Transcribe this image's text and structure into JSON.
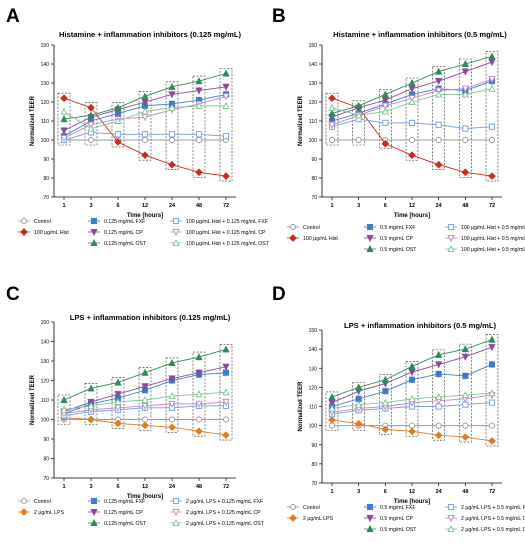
{
  "figure": {
    "panels": [
      "A",
      "B",
      "C",
      "D"
    ]
  },
  "chart_data": [
    {
      "panel": "A",
      "type": "line",
      "title": "Histamine + inflammation inhibitors (0.125 mg/mL)",
      "xlabel": "Time [hours]",
      "ylabel": "Normalized TEER",
      "x": [
        "1",
        "3",
        "6",
        "12",
        "24",
        "48",
        "72"
      ],
      "ylim": [
        70,
        150
      ],
      "yticks": [
        70,
        80,
        90,
        100,
        110,
        120,
        130,
        140,
        150
      ],
      "boxed_x": [
        0,
        1,
        2,
        3,
        4,
        5,
        6
      ],
      "series": [
        {
          "name": "Control",
          "color": "#9a9a9a",
          "marker": "circle-open",
          "values": [
            100,
            100,
            100,
            100,
            100,
            100,
            100
          ]
        },
        {
          "name": "100 µg/mL Hist",
          "color": "#cc2a1e",
          "marker": "diamond",
          "values": [
            122,
            117,
            99,
            92,
            87,
            83,
            81
          ]
        },
        {
          "name": "0.125 mg/mL FXF",
          "color": "#3e7cc4",
          "marker": "square",
          "values": [
            102,
            110,
            114,
            118,
            119,
            121,
            124
          ]
        },
        {
          "name": "0.125 mg/mL CP",
          "color": "#8b4a9c",
          "marker": "triangle-down",
          "values": [
            105,
            112,
            116,
            120,
            124,
            126,
            128
          ]
        },
        {
          "name": "0.125 mg/mL OST",
          "color": "#2e8b57",
          "marker": "triangle",
          "values": [
            111,
            113,
            117,
            123,
            128,
            131,
            135
          ]
        },
        {
          "name": "100 µg/mL Hist + 0.125 mg/mL FXF",
          "color": "#6fa0d8",
          "marker": "square-open",
          "values": [
            100,
            104,
            103,
            103,
            103,
            103,
            102
          ]
        },
        {
          "name": "100 µg/mL Hist + 0.125 mg/mL CP",
          "color": "#c084c9",
          "marker": "triangle-down-open",
          "values": [
            101,
            108,
            111,
            112,
            116,
            119,
            123
          ]
        },
        {
          "name": "100 µg/mL Hist + 0.125 mg/mL OST",
          "color": "#7cc58f",
          "marker": "triangle-open",
          "values": [
            115,
            106,
            110,
            115,
            117,
            118,
            118
          ]
        }
      ]
    },
    {
      "panel": "B",
      "type": "line",
      "title": "Histamine + inflammation inhibitors (0.5 mg/mL)",
      "xlabel": "Time [hours]",
      "ylabel": "Normalized TEER",
      "x": [
        "1",
        "3",
        "6",
        "12",
        "24",
        "48",
        "72"
      ],
      "ylim": [
        70,
        150
      ],
      "yticks": [
        70,
        80,
        90,
        100,
        110,
        120,
        130,
        140,
        150
      ],
      "boxed_x": [
        0,
        1,
        2,
        3,
        4,
        5,
        6
      ],
      "series": [
        {
          "name": "Control",
          "color": "#9a9a9a",
          "marker": "circle-open",
          "values": [
            100,
            100,
            100,
            100,
            100,
            100,
            100
          ]
        },
        {
          "name": "100 µg/mL Hist",
          "color": "#cc2a1e",
          "marker": "diamond",
          "values": [
            122,
            117,
            98,
            92,
            87,
            83,
            81
          ]
        },
        {
          "name": "0.5 mg/mL FXF",
          "color": "#3e7cc4",
          "marker": "square",
          "values": [
            110,
            114,
            119,
            124,
            127,
            126,
            131
          ]
        },
        {
          "name": "0.5 mg/mL CP",
          "color": "#8b4a9c",
          "marker": "triangle-down",
          "values": [
            112,
            117,
            121,
            127,
            131,
            136,
            141
          ]
        },
        {
          "name": "0.5 mg/mL OST",
          "color": "#2e8b57",
          "marker": "triangle",
          "values": [
            114,
            118,
            124,
            130,
            136,
            140,
            144
          ]
        },
        {
          "name": "100 µg/mL Hist + 0.5 mg/mL FXF",
          "color": "#6fa0d8",
          "marker": "square-open",
          "values": [
            107,
            111,
            109,
            109,
            108,
            106,
            107
          ]
        },
        {
          "name": "100 µg/mL Hist + 0.5 mg/mL CP",
          "color": "#c084c9",
          "marker": "triangle-down-open",
          "values": [
            108,
            113,
            118,
            122,
            126,
            127,
            132
          ]
        },
        {
          "name": "100 µg/mL Hist + 0.5 mg/mL OST",
          "color": "#7cc58f",
          "marker": "triangle-open",
          "values": [
            117,
            113,
            115,
            120,
            124,
            124,
            127
          ]
        }
      ]
    },
    {
      "panel": "C",
      "type": "line",
      "title": "LPS + inflammation inhibitors (0.125 mg/mL)",
      "xlabel": "Time [hours]",
      "ylabel": "Normalized TEER",
      "x": [
        "1",
        "3",
        "6",
        "12",
        "24",
        "48",
        "72"
      ],
      "ylim": [
        70,
        150
      ],
      "yticks": [
        70,
        80,
        90,
        100,
        110,
        120,
        130,
        140,
        150
      ],
      "boxed_x": [
        0,
        1,
        2,
        3,
        4,
        5,
        6
      ],
      "series": [
        {
          "name": "Control",
          "color": "#9a9a9a",
          "marker": "circle-open",
          "values": [
            100,
            100,
            100,
            100,
            100,
            100,
            100
          ]
        },
        {
          "name": "2 µg/mL LPS",
          "color": "#e07b22",
          "marker": "diamond",
          "values": [
            101,
            100,
            98,
            97,
            96,
            94,
            92
          ]
        },
        {
          "name": "0.125 mg/mL FXF",
          "color": "#3e7cc4",
          "marker": "square",
          "values": [
            103,
            108,
            111,
            115,
            120,
            123,
            124
          ]
        },
        {
          "name": "0.125 mg/mL CP",
          "color": "#8b4a9c",
          "marker": "triangle-down",
          "values": [
            104,
            109,
            113,
            117,
            121,
            124,
            127
          ]
        },
        {
          "name": "0.125 mg/mL OST",
          "color": "#2e8b57",
          "marker": "triangle",
          "values": [
            110,
            116,
            119,
            124,
            129,
            132,
            136
          ]
        },
        {
          "name": "2 µg/mL LPS + 0.125 mg/mL FXF",
          "color": "#6fa0d8",
          "marker": "square-open",
          "values": [
            102,
            104,
            105,
            106,
            106,
            107,
            107
          ]
        },
        {
          "name": "2 µg/mL LPS + 0.125 mg/mL CP",
          "color": "#c084c9",
          "marker": "triangle-down-open",
          "values": [
            103,
            105,
            106,
            107,
            108,
            108,
            109
          ]
        },
        {
          "name": "2 µg/mL LPS + 0.125 mg/mL OST",
          "color": "#7cc58f",
          "marker": "triangle-open",
          "values": [
            105,
            107,
            109,
            110,
            112,
            113,
            114
          ]
        }
      ]
    },
    {
      "panel": "D",
      "type": "line",
      "title": "LPS + inflammation inhibitors (0.5 mg/mL)",
      "xlabel": "Time [hours]",
      "ylabel": "Normalized TEER",
      "x": [
        "1",
        "3",
        "6",
        "12",
        "24",
        "48",
        "72"
      ],
      "ylim": [
        70,
        150
      ],
      "yticks": [
        70,
        80,
        90,
        100,
        110,
        120,
        130,
        140,
        150
      ],
      "boxed_x": [
        0,
        1,
        2,
        3,
        4,
        5,
        6
      ],
      "series": [
        {
          "name": "Control",
          "color": "#9a9a9a",
          "marker": "circle-open",
          "values": [
            100,
            100,
            100,
            100,
            100,
            100,
            100
          ]
        },
        {
          "name": "2 µg/mL LPS",
          "color": "#e07b22",
          "marker": "diamond",
          "values": [
            103,
            101,
            98,
            97,
            95,
            94,
            92
          ]
        },
        {
          "name": "0.5 mg/mL FXF",
          "color": "#3e7cc4",
          "marker": "square",
          "values": [
            110,
            114,
            118,
            124,
            127,
            126,
            132
          ]
        },
        {
          "name": "0.5 mg/mL CP",
          "color": "#8b4a9c",
          "marker": "triangle-down",
          "values": [
            112,
            118,
            122,
            128,
            132,
            136,
            141
          ]
        },
        {
          "name": "0.5 mg/mL OST",
          "color": "#2e8b57",
          "marker": "triangle",
          "values": [
            115,
            120,
            124,
            131,
            137,
            140,
            145
          ]
        },
        {
          "name": "2 µg/mL LPS + 0.5 mg/mL FXF",
          "color": "#6fa0d8",
          "marker": "square-open",
          "values": [
            106,
            108,
            109,
            110,
            110,
            111,
            112
          ]
        },
        {
          "name": "2 µg/mL LPS + 0.5 mg/mL CP",
          "color": "#c084c9",
          "marker": "triangle-down-open",
          "values": [
            107,
            109,
            110,
            112,
            113,
            114,
            116
          ]
        },
        {
          "name": "2 µg/mL LPS + 0.5 mg/mL OST",
          "color": "#7cc58f",
          "marker": "triangle-open",
          "values": [
            109,
            111,
            112,
            114,
            115,
            116,
            117
          ]
        }
      ]
    }
  ]
}
